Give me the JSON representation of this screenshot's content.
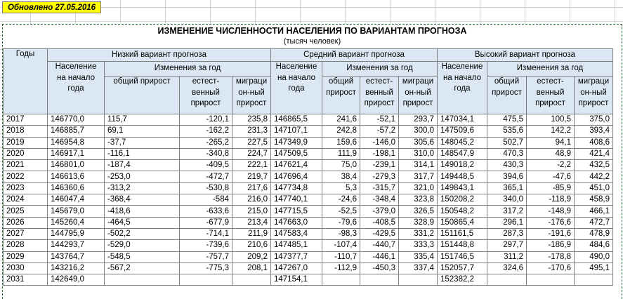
{
  "updated_label": "Обновлено 27.05.2016",
  "title": "ИЗМЕНЕНИЕ ЧИСЛЕННОСТИ НАСЕЛЕНИЯ ПО ВАРИАНТАМ ПРОГНОЗА",
  "subtitle": "(тысяч человек)",
  "headers": {
    "year": "Годы",
    "variant_low": "Низкий вариант прогноза",
    "variant_mid": "Средний вариант прогноза",
    "variant_high": "Высокий вариант прогноза",
    "pop_start": "Население на начало года",
    "changes": "Изменения за год",
    "total_low": "общий прирост",
    "total": "общий прирост",
    "natural": "естест-венный прирост",
    "migration": "миграци он-ный прирост"
  },
  "rows": [
    {
      "year": "2017",
      "low": [
        "146770,0",
        "115,7",
        "-120,1",
        "235,8"
      ],
      "mid": [
        "146865,5",
        "241,6",
        "-52,1",
        "293,7"
      ],
      "high": [
        "147034,1",
        "475,5",
        "100,5",
        "375,0"
      ]
    },
    {
      "year": "2018",
      "low": [
        "146885,7",
        "69,1",
        "-162,2",
        "231,3"
      ],
      "mid": [
        "147107,1",
        "242,8",
        "-57,2",
        "300,0"
      ],
      "high": [
        "147509,6",
        "535,6",
        "142,2",
        "393,4"
      ]
    },
    {
      "year": "2019",
      "low": [
        "146954,8",
        "-37,7",
        "-265,2",
        "227,5"
      ],
      "mid": [
        "147349,9",
        "159,6",
        "-146,0",
        "305,6"
      ],
      "high": [
        "148045,2",
        "502,7",
        "94,1",
        "408,6"
      ]
    },
    {
      "year": "2020",
      "low": [
        "146917,1",
        "-116,1",
        "-340,8",
        "224,7"
      ],
      "mid": [
        "147509,5",
        "111,9",
        "-198,1",
        "310,0"
      ],
      "high": [
        "148547,9",
        "470,3",
        "48,9",
        "421,4"
      ]
    },
    {
      "year": "2021",
      "low": [
        "146801,0",
        "-187,4",
        "-409,5",
        "222,1"
      ],
      "mid": [
        "147621,4",
        "75,0",
        "-239,1",
        "314,1"
      ],
      "high": [
        "149018,2",
        "430,3",
        "-2,2",
        "432,5"
      ]
    },
    {
      "year": "2022",
      "low": [
        "146613,6",
        "-253,0",
        "-472,7",
        "219,7"
      ],
      "mid": [
        "147696,4",
        "38,4",
        "-279,3",
        "317,7"
      ],
      "high": [
        "149448,5",
        "394,6",
        "-47,6",
        "442,2"
      ]
    },
    {
      "year": "2023",
      "low": [
        "146360,6",
        "-313,2",
        "-530,8",
        "217,6"
      ],
      "mid": [
        "147734,8",
        "5,3",
        "-315,7",
        "321,0"
      ],
      "high": [
        "149843,1",
        "365,1",
        "-85,9",
        "451,0"
      ]
    },
    {
      "year": "2024",
      "low": [
        "146047,4",
        "-368,4",
        "-584",
        "216,0"
      ],
      "mid": [
        "147740,1",
        "-24,6",
        "-348,4",
        "323,8"
      ],
      "high": [
        "150208,2",
        "340,0",
        "-118,9",
        "458,9"
      ]
    },
    {
      "year": "2025",
      "low": [
        "145679,0",
        "-418,6",
        "-633,6",
        "215,0"
      ],
      "mid": [
        "147715,5",
        "-52,5",
        "-379,0",
        "326,5"
      ],
      "high": [
        "150548,2",
        "317,2",
        "-148,9",
        "466,1"
      ]
    },
    {
      "year": "2026",
      "low": [
        "145260,4",
        "-464,5",
        "-677,9",
        "213,4"
      ],
      "mid": [
        "147663,0",
        "-79,6",
        "-408,5",
        "328,9"
      ],
      "high": [
        "150865,4",
        "296,1",
        "-176,6",
        "472,7"
      ]
    },
    {
      "year": "2027",
      "low": [
        "144795,9",
        "-502,2",
        "-714,1",
        "211,9"
      ],
      "mid": [
        "147583,4",
        "-98,3",
        "-429,5",
        "331,2"
      ],
      "high": [
        "151161,5",
        "287,3",
        "-191,6",
        "478,9"
      ]
    },
    {
      "year": "2028",
      "low": [
        "144293,7",
        "-529,0",
        "-739,6",
        "210,6"
      ],
      "mid": [
        "147485,1",
        "-107,4",
        "-440,7",
        "333,3"
      ],
      "high": [
        "151448,8",
        "297,7",
        "-186,9",
        "484,6"
      ]
    },
    {
      "year": "2029",
      "low": [
        "143764,7",
        "-548,5",
        "-757,7",
        "209,2"
      ],
      "mid": [
        "147377,7",
        "-110,7",
        "-446,1",
        "335,4"
      ],
      "high": [
        "151746,5",
        "311,2",
        "-178,8",
        "490,0"
      ]
    },
    {
      "year": "2030",
      "low": [
        "143216,2",
        "-567,2",
        "-775,3",
        "208,1"
      ],
      "mid": [
        "147267,0",
        "-112,9",
        "-450,3",
        "337,4"
      ],
      "high": [
        "152057,7",
        "324,6",
        "-170,6",
        "495,1"
      ]
    },
    {
      "year": "2031",
      "low": [
        "142649,0",
        "",
        "",
        ""
      ],
      "mid": [
        "147154,1",
        "",
        "",
        ""
      ],
      "high": [
        "152382,2",
        "",
        "",
        ""
      ]
    }
  ]
}
